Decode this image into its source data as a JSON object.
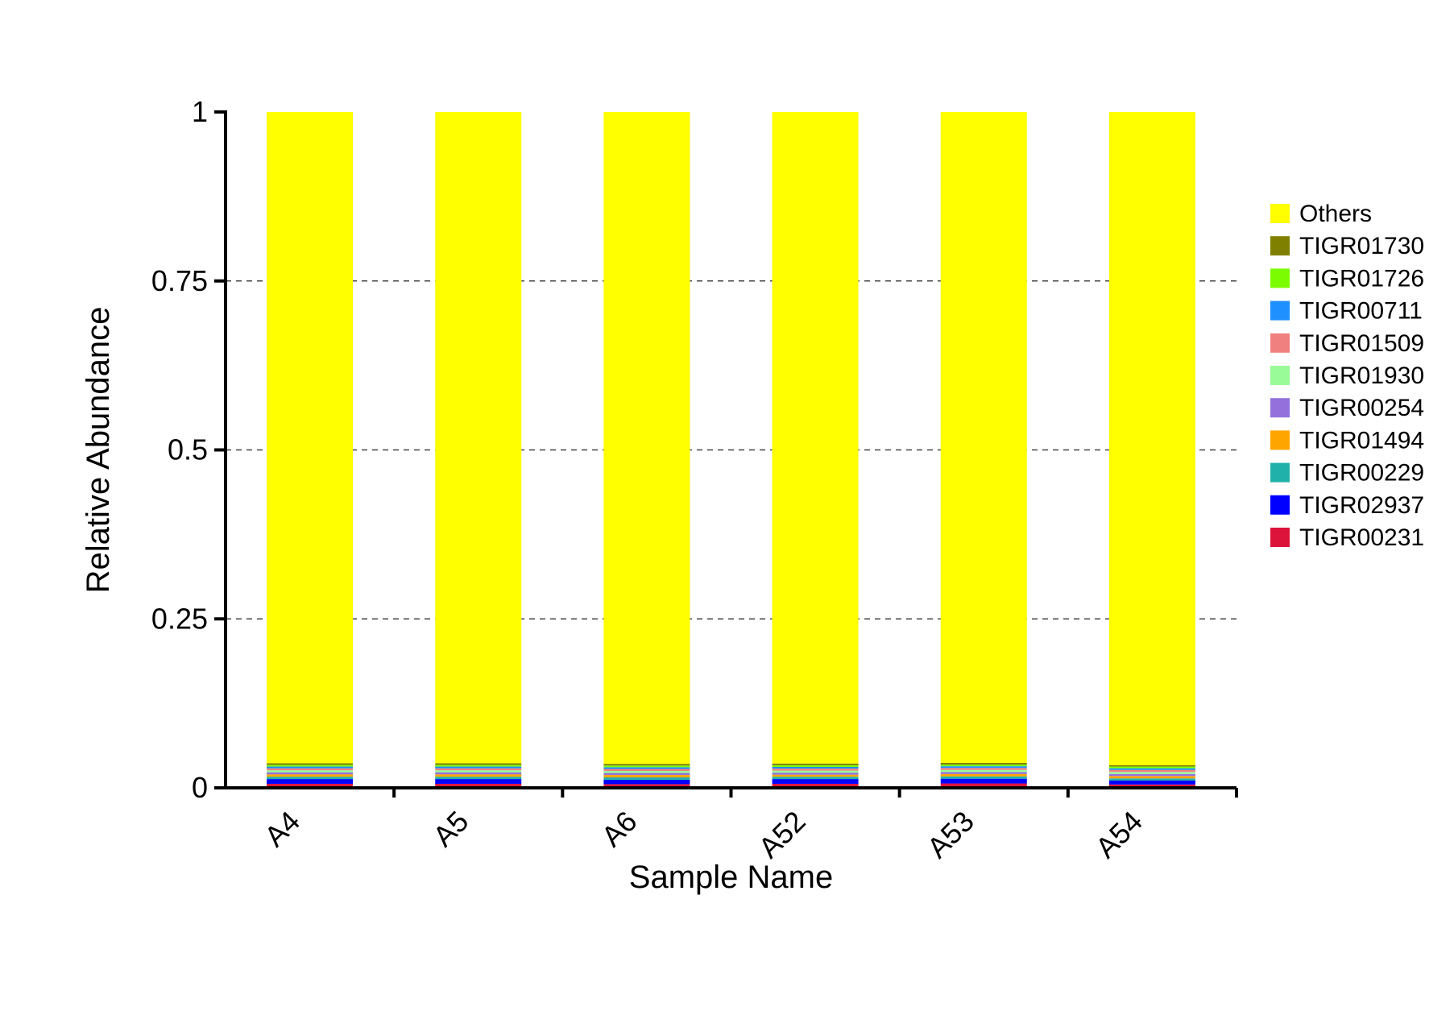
{
  "chart_data": {
    "type": "bar",
    "stacked": true,
    "title": "",
    "xlabel": "Sample Name",
    "ylabel": "Relative Abundance",
    "ylim": [
      0,
      1
    ],
    "yticks": [
      0,
      0.25,
      0.5,
      0.75,
      1
    ],
    "ytick_labels": [
      "0",
      "0.25",
      "0.5",
      "0.75",
      "1"
    ],
    "grid": "horizontal-dashed",
    "legend_position": "right",
    "categories": [
      "A4",
      "A5",
      "A6",
      "A52",
      "A53",
      "A54"
    ],
    "series": [
      {
        "name": "TIGR00231",
        "color": "#dc143c",
        "values": [
          0.006,
          0.006,
          0.0055,
          0.006,
          0.0065,
          0.005
        ]
      },
      {
        "name": "TIGR02937",
        "color": "#0000ff",
        "values": [
          0.007,
          0.007,
          0.0065,
          0.007,
          0.007,
          0.006
        ]
      },
      {
        "name": "TIGR00229",
        "color": "#20b2aa",
        "values": [
          0.0035,
          0.0035,
          0.0035,
          0.0035,
          0.0035,
          0.003
        ]
      },
      {
        "name": "TIGR01494",
        "color": "#ffa500",
        "values": [
          0.0035,
          0.0035,
          0.0035,
          0.003,
          0.0035,
          0.0035
        ]
      },
      {
        "name": "TIGR00254",
        "color": "#9370db",
        "values": [
          0.003,
          0.003,
          0.003,
          0.003,
          0.003,
          0.003
        ]
      },
      {
        "name": "TIGR01930",
        "color": "#98fb98",
        "values": [
          0.003,
          0.003,
          0.003,
          0.003,
          0.003,
          0.003
        ]
      },
      {
        "name": "TIGR01509",
        "color": "#f08080",
        "values": [
          0.003,
          0.003,
          0.003,
          0.003,
          0.003,
          0.003
        ]
      },
      {
        "name": "TIGR00711",
        "color": "#1e90ff",
        "values": [
          0.0025,
          0.0025,
          0.0025,
          0.0025,
          0.0025,
          0.0025
        ]
      },
      {
        "name": "TIGR01726",
        "color": "#7cfc00",
        "values": [
          0.0025,
          0.0025,
          0.0025,
          0.0025,
          0.0025,
          0.0025
        ]
      },
      {
        "name": "TIGR01730",
        "color": "#808000",
        "values": [
          0.0025,
          0.0025,
          0.0025,
          0.0025,
          0.0025,
          0.002
        ]
      },
      {
        "name": "Others",
        "color": "#ffff00",
        "values": [
          0.9635,
          0.9635,
          0.9645,
          0.964,
          0.963,
          0.9665
        ]
      }
    ],
    "legend_order": [
      "Others",
      "TIGR01730",
      "TIGR01726",
      "TIGR00711",
      "TIGR01509",
      "TIGR01930",
      "TIGR00254",
      "TIGR01494",
      "TIGR00229",
      "TIGR02937",
      "TIGR00231"
    ]
  }
}
